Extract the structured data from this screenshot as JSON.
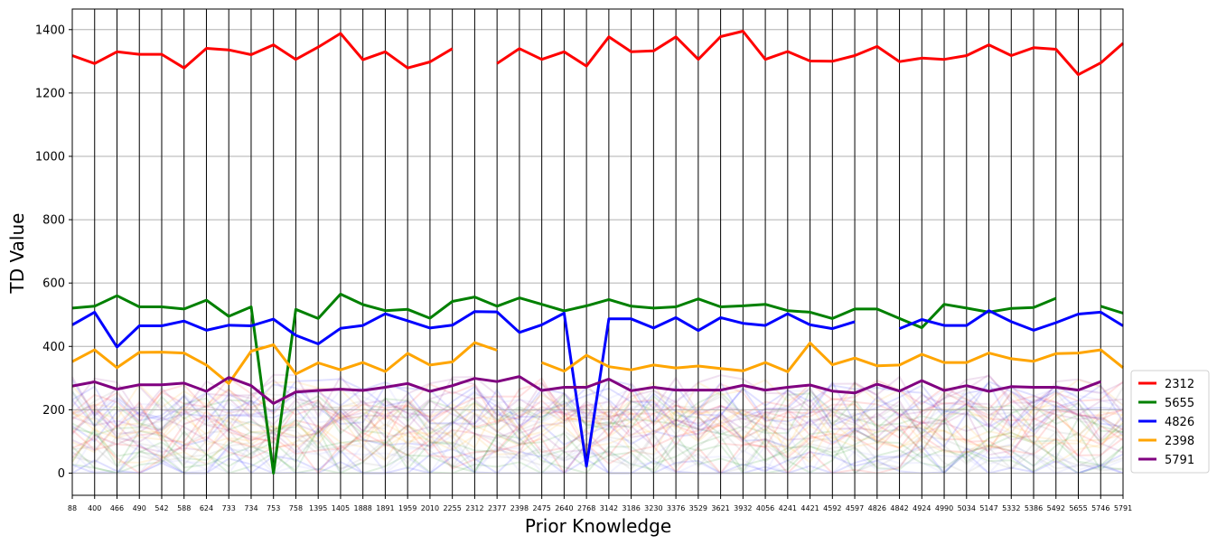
{
  "chart_data": {
    "type": "line",
    "xlabel": "Prior Knowledge",
    "ylabel": "TD Value",
    "ylim": [
      -70,
      1465
    ],
    "yticks": [
      0,
      200,
      400,
      600,
      800,
      1000,
      1200,
      1400
    ],
    "grid": "horizontal",
    "legend_position": "right",
    "categories": [
      "88",
      "400",
      "466",
      "490",
      "542",
      "588",
      "624",
      "733",
      "734",
      "753",
      "758",
      "1395",
      "1405",
      "1888",
      "1891",
      "1959",
      "2010",
      "2255",
      "2312",
      "2377",
      "2398",
      "2475",
      "2640",
      "2768",
      "3142",
      "3186",
      "3230",
      "3376",
      "3529",
      "3621",
      "3932",
      "4056",
      "4241",
      "4421",
      "4592",
      "4597",
      "4826",
      "4842",
      "4924",
      "4990",
      "5034",
      "5147",
      "5332",
      "5386",
      "5492",
      "5655",
      "5746",
      "5791"
    ],
    "series": [
      {
        "name": "2312",
        "color": "#ff0000",
        "values": [
          1318,
          1293,
          1330,
          1322,
          1322,
          1279,
          1341,
          1336,
          1321,
          1352,
          1306,
          1345,
          1388,
          1305,
          1330,
          1279,
          1298,
          1340,
          null,
          1293,
          1340,
          1306,
          1330,
          1285,
          1377,
          1330,
          1333,
          1377,
          1306,
          1378,
          1395,
          1306,
          1331,
          1301,
          1300,
          1318,
          1347,
          1299,
          1310,
          1306,
          1318,
          1352,
          1318,
          1343,
          1338,
          1258,
          1295,
          1357
        ]
      },
      {
        "name": "5655",
        "color": "#008000",
        "values": [
          521,
          527,
          560,
          525,
          525,
          518,
          546,
          495,
          525,
          0,
          517,
          488,
          565,
          532,
          513,
          517,
          489,
          542,
          556,
          527,
          553,
          533,
          512,
          528,
          548,
          527,
          521,
          525,
          550,
          525,
          528,
          533,
          513,
          508,
          488,
          518,
          518,
          488,
          459,
          533,
          521,
          508,
          520,
          523,
          552,
          null,
          527,
          505
        ]
      },
      {
        "name": "4826",
        "color": "#0000ff",
        "values": [
          468,
          508,
          398,
          465,
          465,
          480,
          451,
          467,
          465,
          486,
          435,
          408,
          457,
          466,
          503,
          481,
          458,
          467,
          510,
          509,
          444,
          468,
          505,
          22,
          487,
          487,
          458,
          491,
          450,
          491,
          473,
          466,
          503,
          468,
          456,
          478,
          null,
          456,
          485,
          466,
          466,
          513,
          478,
          451,
          475,
          502,
          508,
          465
        ]
      },
      {
        "name": "2398",
        "color": "#ffa500",
        "values": [
          352,
          389,
          333,
          381,
          382,
          379,
          341,
          283,
          385,
          405,
          313,
          348,
          326,
          349,
          321,
          378,
          341,
          351,
          412,
          388,
          null,
          349,
          322,
          372,
          336,
          326,
          341,
          332,
          338,
          330,
          323,
          349,
          320,
          411,
          342,
          363,
          339,
          341,
          375,
          349,
          349,
          379,
          361,
          353,
          377,
          379,
          389,
          333
        ]
      },
      {
        "name": "5791",
        "color": "#800080",
        "values": [
          275,
          288,
          265,
          279,
          279,
          284,
          258,
          302,
          276,
          220,
          256,
          261,
          265,
          261,
          271,
          283,
          258,
          276,
          299,
          289,
          305,
          261,
          271,
          271,
          297,
          260,
          271,
          262,
          262,
          262,
          277,
          262,
          271,
          278,
          259,
          253,
          281,
          259,
          292,
          261,
          276,
          258,
          273,
          271,
          271,
          262,
          289,
          null
        ]
      }
    ]
  }
}
